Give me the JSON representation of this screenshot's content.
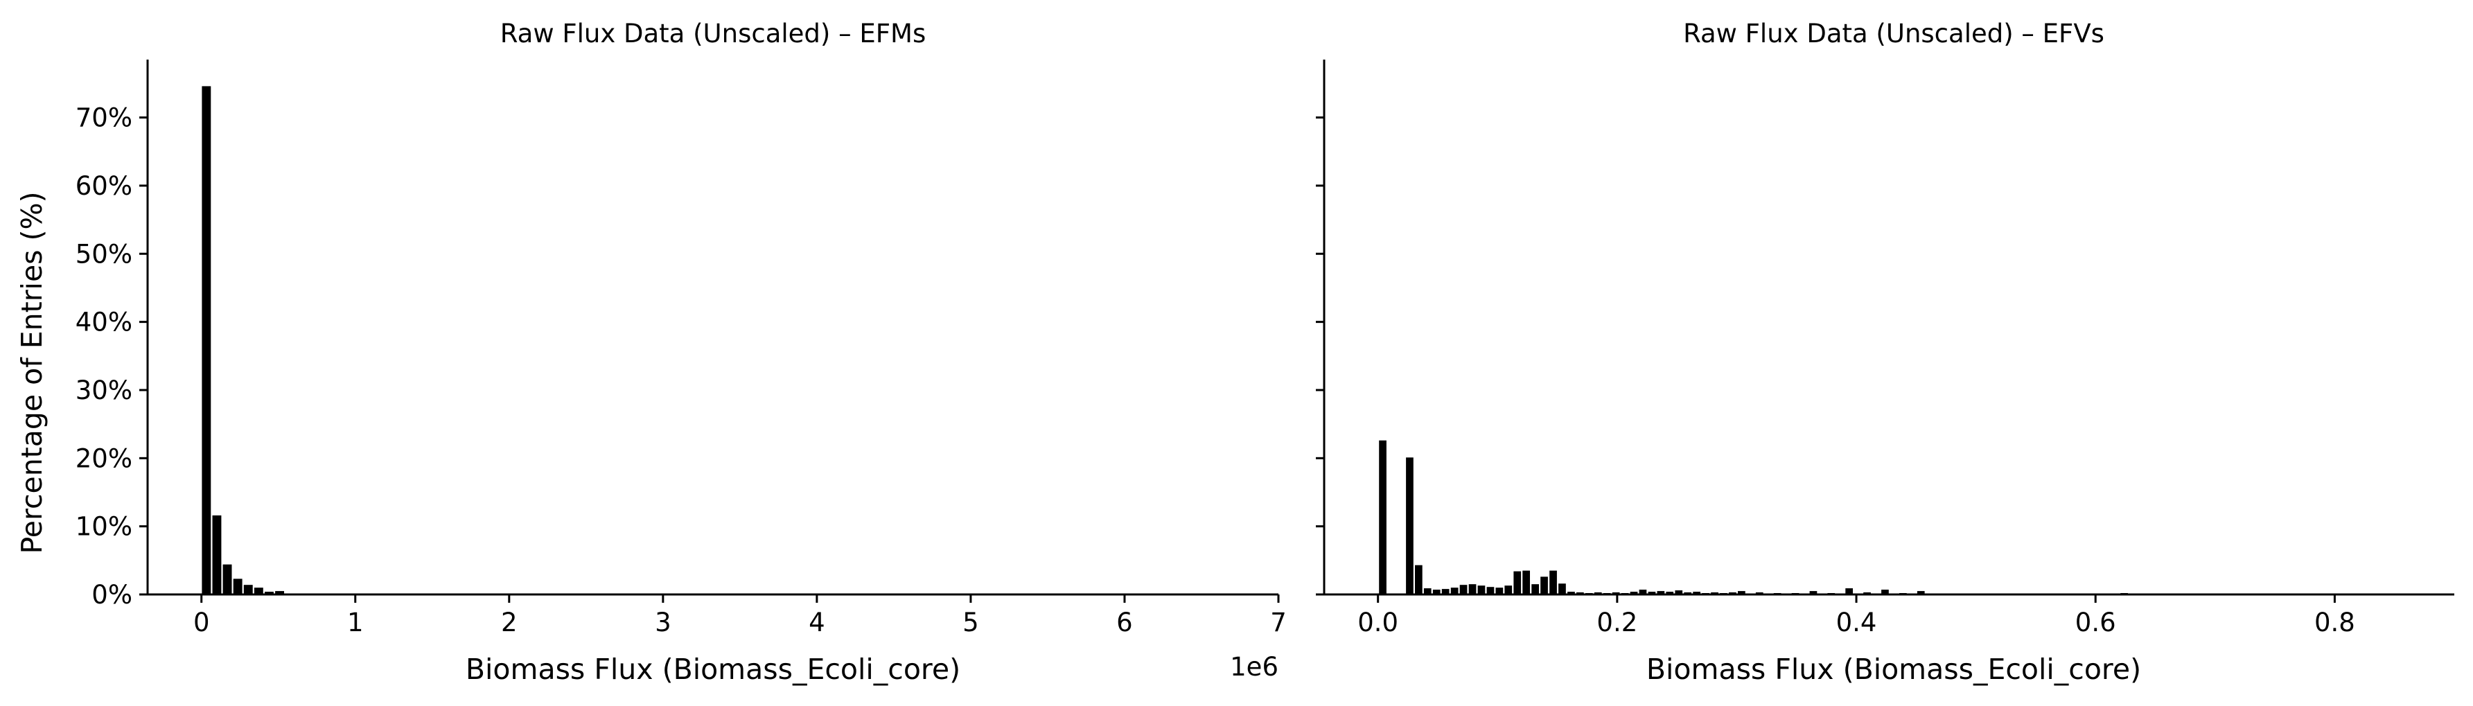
{
  "ylabel": "Percentage of Entries (%)",
  "chart_data": [
    {
      "type": "bar",
      "title": "Raw Flux Data (Unscaled) – EFMs",
      "xlabel": "Biomass Flux (Biomass_Ecoli_core)",
      "ylabel": "Percentage of Entries (%)",
      "x_offset_label": "1e6",
      "xlim": [
        -0.35,
        7.0
      ],
      "ylim": [
        0,
        78.5
      ],
      "x_ticks": [
        0,
        1,
        2,
        3,
        4,
        5,
        6,
        7
      ],
      "x_tick_labels": [
        "0",
        "1",
        "2",
        "3",
        "4",
        "5",
        "6",
        "7"
      ],
      "y_ticks": [
        0,
        10,
        20,
        30,
        40,
        50,
        60,
        70
      ],
      "y_tick_labels": [
        "0%",
        "10%",
        "20%",
        "30%",
        "40%",
        "50%",
        "60%",
        "70%"
      ],
      "bar_width": 0.058,
      "bar_color": "#000000",
      "x": [
        0.032,
        0.1,
        0.168,
        0.236,
        0.304,
        0.372,
        0.44,
        0.508,
        0.576,
        0.644
      ],
      "values": [
        74.6,
        11.6,
        4.4,
        2.3,
        1.4,
        1.0,
        0.4,
        0.5,
        0.15,
        0.1
      ],
      "grid": false,
      "legend": "none"
    },
    {
      "type": "bar",
      "title": "Raw Flux Data (Unscaled) – EFVs",
      "xlabel": "Biomass Flux (Biomass_Ecoli_core)",
      "ylabel": "",
      "xlim": [
        -0.045,
        0.9
      ],
      "ylim": [
        0,
        78.5
      ],
      "x_ticks": [
        0.0,
        0.2,
        0.4,
        0.6,
        0.8
      ],
      "x_tick_labels": [
        "0.0",
        "0.2",
        "0.4",
        "0.6",
        "0.8"
      ],
      "y_ticks": [
        0,
        10,
        20,
        30,
        40,
        50,
        60,
        70
      ],
      "y_tick_labels": [
        "",
        "",
        "",
        "",
        "",
        "",
        "",
        ""
      ],
      "bar_width": 0.0062,
      "bar_color": "#000000",
      "x": [
        0.004,
        0.0115,
        0.019,
        0.0265,
        0.034,
        0.0415,
        0.049,
        0.0565,
        0.064,
        0.0715,
        0.079,
        0.0865,
        0.094,
        0.1015,
        0.109,
        0.1165,
        0.124,
        0.1315,
        0.139,
        0.1465,
        0.154,
        0.1615,
        0.169,
        0.1765,
        0.184,
        0.1915,
        0.199,
        0.2065,
        0.214,
        0.2215,
        0.229,
        0.2365,
        0.244,
        0.2515,
        0.259,
        0.2665,
        0.274,
        0.2815,
        0.289,
        0.2965,
        0.304,
        0.319,
        0.334,
        0.349,
        0.364,
        0.379,
        0.394,
        0.409,
        0.424,
        0.439,
        0.454,
        0.624
      ],
      "values": [
        22.6,
        0.0,
        0.0,
        20.1,
        4.3,
        0.9,
        0.7,
        0.8,
        1.0,
        1.4,
        1.5,
        1.3,
        1.1,
        1.0,
        1.3,
        3.4,
        3.5,
        1.5,
        2.6,
        3.5,
        1.6,
        0.4,
        0.3,
        0.2,
        0.3,
        0.2,
        0.3,
        0.2,
        0.4,
        0.7,
        0.4,
        0.5,
        0.4,
        0.6,
        0.3,
        0.4,
        0.2,
        0.3,
        0.2,
        0.3,
        0.5,
        0.3,
        0.2,
        0.2,
        0.5,
        0.2,
        0.9,
        0.3,
        0.7,
        0.2,
        0.5,
        0.2
      ],
      "grid": false,
      "legend": "none"
    }
  ]
}
